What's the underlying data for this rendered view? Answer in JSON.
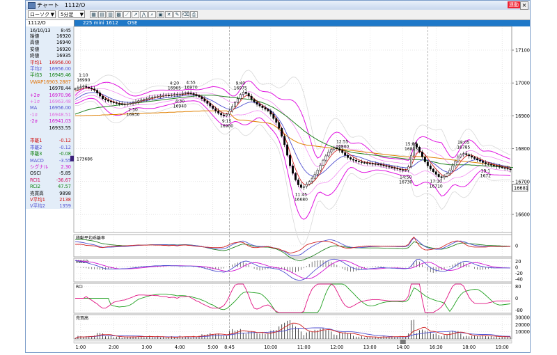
{
  "window": {
    "title": "チャート　1112/O",
    "badge": "連動",
    "close": "×"
  },
  "toolbar": {
    "chart_type": "ローソク",
    "interval": "5分足"
  },
  "infobar": {
    "code": "1112/O",
    "name": "225 mini 1612",
    "exchange": "OSE"
  },
  "panel": {
    "datetime": {
      "date": "16/10/13",
      "time": "8:45"
    },
    "rows": [
      {
        "label": "始値",
        "value": "16920",
        "color": "#000000"
      },
      {
        "label": "高値",
        "value": "16940",
        "color": "#000000"
      },
      {
        "label": "安値",
        "value": "16920",
        "color": "#000000"
      },
      {
        "label": "終値",
        "value": "16935",
        "color": "#000000"
      },
      {
        "label": "平均1",
        "value": "16956.00",
        "color": "#d01010"
      },
      {
        "label": "平均2",
        "value": "16956.00",
        "color": "#5050d0"
      },
      {
        "label": "平均3",
        "value": "16949.46",
        "color": "#108010"
      },
      {
        "label": "VWAP",
        "value": "16903.2887",
        "color": "#e07000"
      },
      {
        "label": "",
        "value": "16978.44",
        "color": "#000000"
      },
      {
        "label": "+2σ",
        "value": "16970.96",
        "color": "#d010d0"
      },
      {
        "label": "+1σ",
        "value": "16963.48",
        "color": "#e070e0"
      },
      {
        "label": "MA",
        "value": "16956.00",
        "color": "#5050d0"
      },
      {
        "label": "-1σ",
        "value": "16948.51",
        "color": "#e070e0"
      },
      {
        "label": "-2σ",
        "value": "16941.03",
        "color": "#d010d0"
      },
      {
        "label": "",
        "value": "16933.55",
        "color": "#000000"
      },
      {
        "label": "",
        "value": "",
        "color": "#000000"
      },
      {
        "label": "乖離1",
        "value": "-0.12",
        "color": "#d01010"
      },
      {
        "label": "乖離2",
        "value": "-0.12",
        "color": "#5050d0"
      },
      {
        "label": "乖離3",
        "value": "-0.08",
        "color": "#108010"
      },
      {
        "label": "MACD",
        "value": "-3.55",
        "color": "#5050d0"
      },
      {
        "label": "シグナル",
        "value": "2.30",
        "color": "#d010d0"
      },
      {
        "label": "OSCI",
        "value": "-5.85",
        "color": "#000000"
      },
      {
        "label": "RCI1",
        "value": "-36.67",
        "color": "#d01060"
      },
      {
        "label": "RCI2",
        "value": "47.57",
        "color": "#108010"
      },
      {
        "label": "売買高",
        "value": "9898",
        "color": "#000000"
      },
      {
        "label": "V平均1",
        "value": "2138",
        "color": "#d01010"
      },
      {
        "label": "V平均2",
        "value": "1359",
        "color": "#5050d0"
      }
    ]
  },
  "chart_data": {
    "type": "line",
    "main": {
      "y_ticks": [
        17100,
        17000,
        16900,
        16800,
        16700,
        16600
      ],
      "ylim": [
        16545,
        17172
      ],
      "last_price": "16681",
      "volume_marker": "173686",
      "callouts": [
        {
          "time": "1:10",
          "price": "16990",
          "idx": 3
        },
        {
          "time": "2:50",
          "price": "16930",
          "idx": 21
        },
        {
          "time": "4:20",
          "price": "16965",
          "idx": 36
        },
        {
          "time": "4:30",
          "price": "16940",
          "idx": 38
        },
        {
          "time": "4:55",
          "price": "16970",
          "idx": 42
        },
        {
          "time": "9:15",
          "price": "16900",
          "idx": 55
        },
        {
          "time": "9:40",
          "price": "16975",
          "idx": 60
        },
        {
          "time": "11:45",
          "price": "16680",
          "idx": 82
        },
        {
          "time": "12:55",
          "price": "16800",
          "idx": 97
        },
        {
          "time": "14:50",
          "price": "16730",
          "idx": 120
        },
        {
          "time": "15:05",
          "price": "16815",
          "idx": 122
        },
        {
          "time": "17:10",
          "price": "16710",
          "idx": 131
        },
        {
          "time": "18:05",
          "price": "16785",
          "idx": 141
        },
        {
          "time": "19:1",
          "price": "1672",
          "idx": 149
        }
      ]
    },
    "x_ticks": [
      {
        "label": "1:00",
        "idx": 2
      },
      {
        "label": "2:00",
        "idx": 14
      },
      {
        "label": "3:00",
        "idx": 26
      },
      {
        "label": "4:00",
        "idx": 38
      },
      {
        "label": "5:00",
        "idx": 50
      },
      {
        "label": "8:45",
        "idx": 56
      },
      {
        "label": "10:00",
        "idx": 71
      },
      {
        "label": "11:00",
        "idx": 83
      },
      {
        "label": "12:00",
        "idx": 95
      },
      {
        "label": "13:00",
        "idx": 107
      },
      {
        "label": "14:00",
        "idx": 119
      },
      {
        "label": "16:30",
        "idx": 131
      },
      {
        "label": "18:00",
        "idx": 143
      },
      {
        "label": "19:00",
        "idx": 155
      }
    ],
    "session_break_idx": [
      56,
      128
    ],
    "candles": [
      16982,
      16986,
      16988,
      16990,
      16987,
      16985,
      16982,
      16978,
      16970,
      16960,
      16952,
      16948,
      16945,
      16942,
      16940,
      16938,
      16937,
      16936,
      16935,
      16936,
      16938,
      16940,
      16943,
      16946,
      16948,
      16950,
      16952,
      16955,
      16957,
      16958,
      16960,
      16961,
      16962,
      16963,
      16962,
      16964,
      16965,
      16963,
      16966,
      16968,
      16970,
      16969,
      16968,
      16965,
      16962,
      16958,
      16952,
      16945,
      16938,
      16930,
      16922,
      16915,
      16908,
      16903,
      16900,
      16905,
      16915,
      16928,
      16940,
      16952,
      16965,
      16972,
      16968,
      16960,
      16950,
      16942,
      16935,
      16930,
      16925,
      16920,
      16915,
      16905,
      16892,
      16880,
      16862,
      16838,
      16812,
      16780,
      16748,
      16725,
      16705,
      16690,
      16682,
      16685,
      16692,
      16700,
      16710,
      16722,
      16735,
      16750,
      16765,
      16778,
      16790,
      16798,
      16802,
      16800,
      16795,
      16788,
      16780,
      16773,
      16768,
      16765,
      16762,
      16760,
      16758,
      16757,
      16756,
      16755,
      16754,
      16753,
      16752,
      16750,
      16748,
      16746,
      16744,
      16742,
      16740,
      16738,
      16736,
      16734,
      16735,
      16745,
      16780,
      16815,
      16805,
      16790,
      16775,
      16760,
      16748,
      16738,
      16730,
      16722,
      16715,
      16712,
      16716,
      16724,
      16735,
      16748,
      16762,
      16775,
      16782,
      16785,
      16782,
      16778,
      16774,
      16770,
      16766,
      16762,
      16758,
      16754,
      16752,
      16750,
      16748,
      16746,
      16744,
      16742,
      16740,
      16738,
      16736
    ],
    "ma_short_red": [
      16975,
      16978,
      16981,
      16984,
      16985,
      16984,
      16982,
      16979,
      16975,
      16969,
      16962,
      16955,
      16950,
      16946,
      16943,
      16940,
      16938,
      16937,
      16936,
      16936,
      16937,
      16938,
      16940,
      16942,
      16945,
      16947,
      16949,
      16951,
      16953,
      16955,
      16957,
      16958,
      16960,
      16961,
      16962,
      16962,
      16963,
      16964,
      16964,
      16965,
      16966,
      16967,
      16967,
      16966,
      16965,
      16962,
      16958,
      16952,
      16946,
      16939,
      16932,
      16925,
      16918,
      16912,
      16907,
      16906,
      16909,
      16915,
      16924,
      16934,
      16945,
      16955,
      16961,
      16962,
      16958,
      16952,
      16945,
      16938,
      16932,
      16926,
      16920,
      16913,
      16904,
      16893,
      16880,
      16862,
      16840,
      16815,
      16788,
      16762,
      16738,
      16718,
      16702,
      16692,
      16688,
      16690,
      16696,
      16704,
      16714,
      16726,
      16740,
      16754,
      16768,
      16780,
      16789,
      16795,
      16797,
      16796,
      16792,
      16787,
      16781,
      16775,
      16770,
      16766,
      16763,
      16760,
      16758,
      16757,
      16756,
      16755,
      16754,
      16753,
      16751,
      16749,
      16747,
      16745,
      16743,
      16741,
      16739,
      16737,
      16736,
      16738,
      16748,
      16768,
      16785,
      16792,
      16790,
      16782,
      16771,
      16759,
      16748,
      16738,
      16729,
      16721,
      16716,
      16716,
      16720,
      16727,
      16737,
      16749,
      16761,
      16771,
      16778,
      16781,
      16780,
      16777,
      16773,
      16769,
      16765,
      16761,
      16758,
      16755,
      16752,
      16750,
      16748,
      16746,
      16744,
      16742,
      16740
    ],
    "ma_mid_blue": [
      16950,
      16955,
      16960,
      16965,
      16968,
      16970,
      16971,
      16971,
      16970,
      16968,
      16965,
      16961,
      16957,
      16953,
      16950,
      16947,
      16945,
      16943,
      16942,
      16941,
      16941,
      16941,
      16942,
      16943,
      16944,
      16945,
      16946,
      16948,
      16949,
      16950,
      16952,
      16953,
      16954,
      16955,
      16956,
      16957,
      16958,
      16959,
      16960,
      16961,
      16962,
      16963,
      16963,
      16963,
      16962,
      16961,
      16959,
      16956,
      16953,
      16949,
      16945,
      16940,
      16935,
      16930,
      16926,
      16922,
      16920,
      16920,
      16922,
      16925,
      16929,
      16934,
      16938,
      16941,
      16942,
      16941,
      16939,
      16936,
      16932,
      16927,
      16922,
      16916,
      16909,
      16900,
      16889,
      16876,
      16860,
      16842,
      16823,
      16804,
      16785,
      16767,
      16751,
      16738,
      16728,
      16721,
      16717,
      16716,
      16718,
      16722,
      16728,
      16735,
      16743,
      16751,
      16759,
      16766,
      16772,
      16776,
      16779,
      16780,
      16780,
      16779,
      16777,
      16775,
      16772,
      16769,
      16766,
      16763,
      16761,
      16759,
      16757,
      16755,
      16753,
      16752,
      16750,
      16749,
      16747,
      16746,
      16744,
      16743,
      16742,
      16742,
      16744,
      16749,
      16756,
      16762,
      16766,
      16767,
      16765,
      16761,
      16756,
      16750,
      16743,
      16737,
      16732,
      16729,
      16728,
      16730,
      16733,
      16738,
      16744,
      16750,
      16756,
      16761,
      16764,
      16766,
      16766,
      16765,
      16763,
      16761,
      16759,
      16757,
      16755,
      16753,
      16751,
      16749,
      16747,
      16745,
      16743
    ],
    "ma_long_green": [
      16905,
      16908,
      16911,
      16914,
      16917,
      16919,
      16921,
      16923,
      16925,
      16926,
      16927,
      16928,
      16929,
      16930,
      16931,
      16932,
      16933,
      16934,
      16935,
      16936,
      16937,
      16938,
      16939,
      16940,
      16941,
      16942,
      16943,
      16944,
      16945,
      16946,
      16947,
      16948,
      16949,
      16950,
      16951,
      16952,
      16953,
      16954,
      16955,
      16956,
      16957,
      16958,
      16959,
      16960,
      16961,
      16962,
      16963,
      16963,
      16963,
      16963,
      16963,
      16962,
      16961,
      16960,
      16959,
      16958,
      16957,
      16956,
      16955,
      16954,
      16953,
      16952,
      16951,
      16950,
      16949,
      16947,
      16945,
      16943,
      16940,
      16937,
      16933,
      16929,
      16925,
      16920,
      16915,
      16909,
      16903,
      16897,
      16890,
      16883,
      16876,
      16869,
      16862,
      16855,
      16849,
      16843,
      16837,
      16832,
      16827,
      16822,
      16818,
      16814,
      16810,
      16807,
      16804,
      16801,
      16798,
      16796,
      16794,
      16792,
      16790,
      16788,
      16787,
      16786,
      16785,
      16784,
      16783,
      16782,
      16781,
      16780,
      16779,
      16778,
      16777,
      16776,
      16775,
      16774,
      16773,
      16772,
      16771,
      16770,
      16769,
      16768,
      16767,
      16767,
      16767,
      16767,
      16766,
      16765,
      16764,
      16762,
      16760,
      16758,
      16756,
      16754,
      16753,
      16752,
      16751,
      16751,
      16751,
      16751,
      16751,
      16751,
      16751,
      16751,
      16750,
      16750,
      16749,
      16749,
      16748,
      16748,
      16747,
      16747,
      16746,
      16746,
      16745,
      16745,
      16744,
      16744,
      16743,
      16743
    ],
    "vwap_orange": [
      16900,
      16900,
      16900,
      16900,
      16901,
      16901,
      16901,
      16902,
      16902,
      16902,
      16903,
      16903,
      16903,
      16904,
      16904,
      16904,
      16905,
      16905,
      16905,
      16906,
      16906,
      16906,
      16907,
      16907,
      16907,
      16908,
      16908,
      16908,
      16909,
      16909,
      16909,
      16910,
      16910,
      16910,
      16911,
      16911,
      16911,
      16912,
      16912,
      16912,
      16913,
      16913,
      16913,
      16914,
      16914,
      16914,
      16915,
      16915,
      16915,
      16915,
      16915,
      16915,
      16915,
      16915,
      16915,
      16915,
      16910,
      16900,
      16892,
      16888,
      16887,
      16887,
      16886,
      16885,
      16884,
      16883,
      16882,
      16881,
      16880,
      16879,
      16878,
      16876,
      16872,
      16866,
      16860,
      16852,
      16845,
      16838,
      16832,
      16827,
      16822,
      16818,
      16815,
      16813,
      16811,
      16810,
      16809,
      16808,
      16807,
      16806,
      16805,
      16804,
      16803,
      16802,
      16801,
      16800,
      16799,
      16798,
      16797,
      16796,
      16795,
      16794,
      16793,
      16792,
      16791,
      16790,
      16789,
      16788,
      16787,
      16786,
      16785,
      16784,
      16783,
      16782,
      16781,
      16780,
      16779,
      16778,
      16777,
      16776,
      16775,
      16775,
      16775,
      16776,
      16776,
      16776,
      16776,
      16775,
      16775,
      16774,
      16773,
      16772,
      16771,
      16770,
      16769,
      16768,
      16767,
      16766,
      16765,
      16764,
      16763,
      16762,
      16761,
      16760,
      16759,
      16758,
      16757,
      16756,
      16755,
      16754,
      16753,
      16752,
      16751,
      16750,
      16749,
      16748,
      16747,
      16746,
      16745
    ],
    "osc_ma_dev": {
      "y_ticks": [
        0
      ],
      "ylim": [
        -3,
        3
      ]
    },
    "macd": {
      "y_ticks": [
        20,
        0,
        -20,
        -40
      ],
      "ylim": [
        -50,
        30
      ]
    },
    "rci": {
      "y_ticks": [
        80,
        0,
        -80
      ],
      "ylim": [
        -100,
        100
      ]
    },
    "volume": {
      "y_ticks": [
        30000,
        20000,
        10000
      ],
      "ylim": [
        0,
        34000
      ]
    },
    "sub_labels": {
      "dev": "移動平均乖離率",
      "macd": "MACD",
      "rci": "RCI",
      "volume": "売買高"
    }
  }
}
